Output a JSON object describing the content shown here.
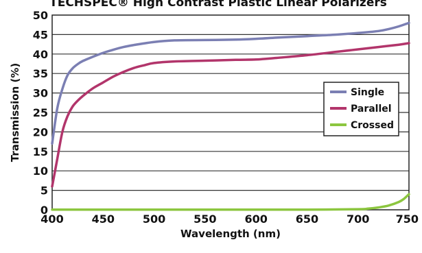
{
  "chart_data": {
    "type": "line",
    "title": "TECHSPEC® High Contrast Plastic Linear Polarizers",
    "xlabel": "Wavelength (nm)",
    "ylabel": "Transmission (%)",
    "xlim": [
      400,
      750
    ],
    "ylim": [
      0,
      50
    ],
    "xticks": [
      400,
      450,
      500,
      550,
      600,
      650,
      700,
      750
    ],
    "yticks": [
      0,
      5,
      10,
      15,
      20,
      25,
      30,
      35,
      40,
      45,
      50
    ],
    "grid": "horizontal",
    "legend_position": "center-right",
    "series": [
      {
        "name": "Single",
        "color": "#7b7fb3",
        "x": [
          400,
          405,
          410,
          415,
          420,
          425,
          430,
          440,
          450,
          460,
          470,
          480,
          500,
          520,
          550,
          580,
          600,
          620,
          650,
          680,
          700,
          720,
          730,
          740,
          750
        ],
        "y": [
          17,
          26,
          31,
          34.5,
          36.3,
          37.4,
          38.2,
          39.3,
          40.3,
          41.1,
          41.8,
          42.3,
          43.1,
          43.5,
          43.6,
          43.7,
          43.9,
          44.2,
          44.6,
          45.0,
          45.4,
          45.9,
          46.4,
          47.1,
          48.0
        ]
      },
      {
        "name": "Parallel",
        "color": "#b2356b",
        "x": [
          400,
          405,
          410,
          415,
          420,
          425,
          430,
          440,
          450,
          460,
          470,
          480,
          490,
          500,
          520,
          550,
          580,
          600,
          620,
          650,
          680,
          700,
          720,
          740,
          750
        ],
        "y": [
          6,
          13,
          20,
          24,
          26.5,
          28,
          29.2,
          31.2,
          32.7,
          34.2,
          35.4,
          36.4,
          37.1,
          37.7,
          38.1,
          38.3,
          38.5,
          38.6,
          39.0,
          39.7,
          40.6,
          41.2,
          41.8,
          42.4,
          42.8
        ]
      },
      {
        "name": "Crossed",
        "color": "#8cc63f",
        "x": [
          400,
          450,
          500,
          550,
          600,
          650,
          700,
          710,
          720,
          730,
          740,
          745,
          750
        ],
        "y": [
          0.05,
          0.05,
          0.05,
          0.05,
          0.05,
          0.05,
          0.15,
          0.3,
          0.6,
          1.1,
          2.0,
          2.8,
          4.0
        ]
      }
    ]
  }
}
